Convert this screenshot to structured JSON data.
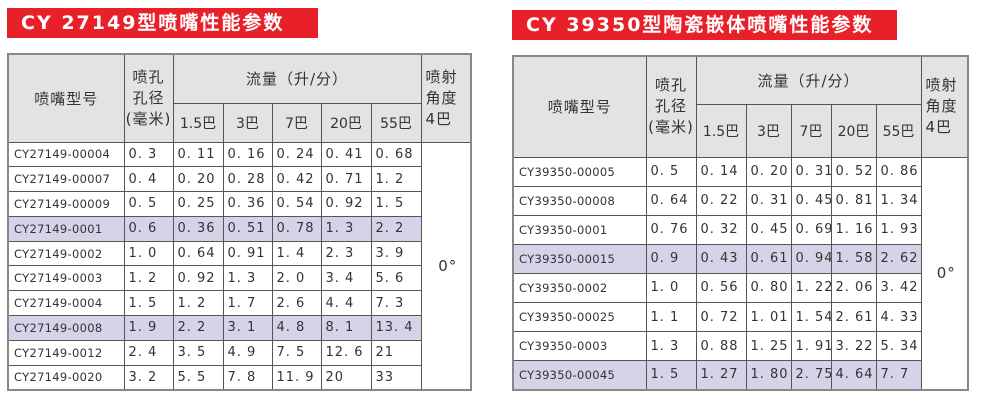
{
  "left": {
    "title": "CY 27149型喷嘴性能参数",
    "headers": {
      "model": "喷嘴型号",
      "orifice": "喷孔\n孔径\n(毫米)",
      "flow": "流量（升/分）",
      "angle": "喷射\n角度\n4巴",
      "pressures": [
        "1.5巴",
        "3巴",
        "7巴",
        "20巴",
        "55巴"
      ]
    },
    "angle_value": "0°",
    "rows": [
      {
        "model": "CY27149-00004",
        "orifice": "0. 3",
        "flows": [
          "0. 11",
          "0. 16",
          "0. 24",
          "0. 41",
          "0. 68"
        ],
        "highlight": false
      },
      {
        "model": "CY27149-00007",
        "orifice": "0. 4",
        "flows": [
          "0. 20",
          "0. 28",
          "0. 42",
          "0. 71",
          "1. 2"
        ],
        "highlight": false
      },
      {
        "model": "CY27149-00009",
        "orifice": "0. 5",
        "flows": [
          "0. 25",
          "0. 36",
          "0. 54",
          "0. 92",
          "1. 5"
        ],
        "highlight": false
      },
      {
        "model": "CY27149-0001",
        "orifice": "0. 6",
        "flows": [
          "0. 36",
          "0. 51",
          "0. 78",
          "1. 3",
          "2. 2"
        ],
        "highlight": true
      },
      {
        "model": "CY27149-0002",
        "orifice": "1. 0",
        "flows": [
          "0. 64",
          "0. 91",
          "1. 4",
          "2. 3",
          "3. 9"
        ],
        "highlight": false
      },
      {
        "model": "CY27149-0003",
        "orifice": "1. 2",
        "flows": [
          "0. 92",
          "1. 3",
          "2. 0",
          "3. 4",
          "5. 6"
        ],
        "highlight": false
      },
      {
        "model": "CY27149-0004",
        "orifice": "1. 5",
        "flows": [
          "1. 2",
          "1. 7",
          "2. 6",
          "4. 4",
          "7. 3"
        ],
        "highlight": false
      },
      {
        "model": "CY27149-0008",
        "orifice": "1. 9",
        "flows": [
          "2. 2",
          "3. 1",
          "4. 8",
          "8. 1",
          "13. 4"
        ],
        "highlight": true
      },
      {
        "model": "CY27149-0012",
        "orifice": "2. 4",
        "flows": [
          "3. 5",
          "4. 9",
          "7. 5",
          "12. 6",
          "21"
        ],
        "highlight": false
      },
      {
        "model": "CY27149-0020",
        "orifice": "3. 2",
        "flows": [
          "5. 5",
          "7. 8",
          "11. 9",
          "20",
          "33"
        ],
        "highlight": false
      }
    ]
  },
  "right": {
    "title": "CY 39350型陶瓷嵌体喷嘴性能参数",
    "headers": {
      "model": "喷嘴型号",
      "orifice": "喷孔\n孔径\n(毫米)",
      "flow": "流量（升/分）",
      "angle": "喷射\n角度\n4巴",
      "pressures": [
        "1.5巴",
        "3巴",
        "7巴",
        "20巴",
        "55巴"
      ]
    },
    "angle_value": "0°",
    "rows": [
      {
        "model": "CY39350-00005",
        "orifice": "0. 5",
        "flows": [
          "0. 14",
          "0. 20",
          "0. 31",
          "0. 52",
          "0. 86"
        ],
        "highlight": false
      },
      {
        "model": "CY39350-00008",
        "orifice": "0. 64",
        "flows": [
          "0. 22",
          "0. 31",
          "0. 45",
          "0. 81",
          "1. 34"
        ],
        "highlight": false
      },
      {
        "model": "CY39350-0001",
        "orifice": "0. 76",
        "flows": [
          "0. 32",
          "0. 45",
          "0. 69",
          "1. 16",
          "1. 93"
        ],
        "highlight": false
      },
      {
        "model": "CY39350-00015",
        "orifice": "0. 9",
        "flows": [
          "0. 43",
          "0. 61",
          "0. 94",
          "1. 58",
          "2. 62"
        ],
        "highlight": true
      },
      {
        "model": "CY39350-0002",
        "orifice": "1. 0",
        "flows": [
          "0. 56",
          "0. 80",
          "1. 22",
          "2. 06",
          "3. 42"
        ],
        "highlight": false
      },
      {
        "model": "CY39350-00025",
        "orifice": "1. 1",
        "flows": [
          "0. 72",
          "1. 01",
          "1. 54",
          "2. 61",
          "4. 33"
        ],
        "highlight": false
      },
      {
        "model": "CY39350-0003",
        "orifice": "1. 3",
        "flows": [
          "0. 88",
          "1. 25",
          "1. 91",
          "3. 22",
          "5. 34"
        ],
        "highlight": false
      },
      {
        "model": "CY39350-00045",
        "orifice": "1. 5",
        "flows": [
          "1. 27",
          "1. 80",
          "2. 75",
          "4. 64",
          "7. 7"
        ],
        "highlight": true
      }
    ],
    "colors": {
      "banner": "#e8202a",
      "header_bg": "#e3e3e5",
      "highlight_row": "#d5d3e8"
    }
  }
}
